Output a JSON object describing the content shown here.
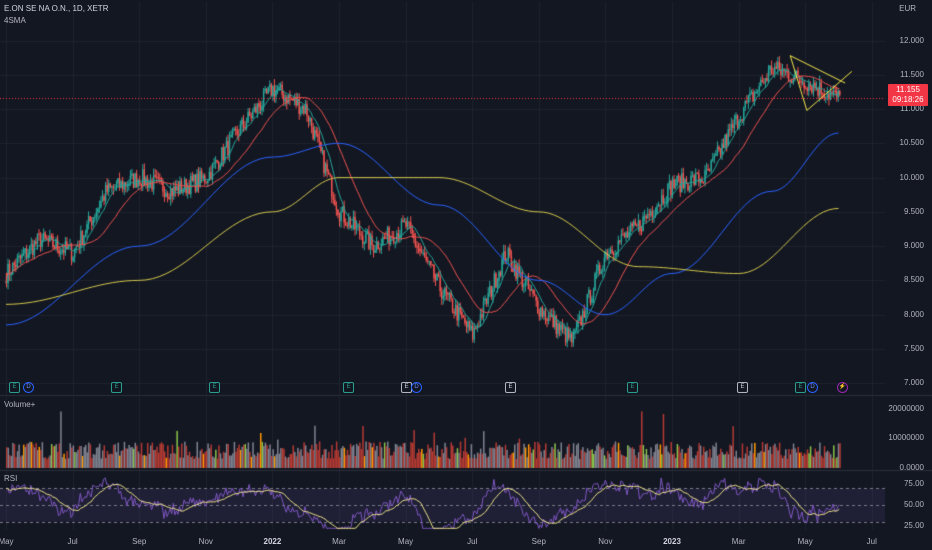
{
  "header": {
    "symbol": "E.ON SE NA O.N., 1D, XETR",
    "indicator": "4SMA"
  },
  "currency": "EUR",
  "current_price": {
    "value": "11.155",
    "countdown": "09:18:26"
  },
  "volume_pane": {
    "title": "Volume+",
    "ticks": [
      "20000000",
      "10000000",
      "0.0000"
    ]
  },
  "rsi_pane": {
    "title": "RSI",
    "ticks": [
      "75.00",
      "50.00",
      "25.00"
    ]
  },
  "price_ticks": [
    "12.000",
    "11.500",
    "11.000",
    "10.500",
    "10.000",
    "9.500",
    "9.000",
    "8.500",
    "8.000",
    "7.500",
    "7.000"
  ],
  "time_axis": [
    "May",
    "Jul",
    "Sep",
    "Nov",
    "2022",
    "Mar",
    "May",
    "Jul",
    "Sep",
    "Nov",
    "2023",
    "Mar",
    "May",
    "Jul"
  ],
  "events": [
    {
      "type": "E",
      "style": "e-green"
    },
    {
      "type": "D",
      "style": "d-blue"
    },
    {
      "type": "E",
      "style": "e-green"
    },
    {
      "type": "E",
      "style": "e-green"
    },
    {
      "type": "E",
      "style": "e-green"
    },
    {
      "type": "E",
      "style": "e-white"
    },
    {
      "type": "D",
      "style": "d-blue"
    },
    {
      "type": "E",
      "style": "e-white"
    },
    {
      "type": "E",
      "style": "e-green"
    },
    {
      "type": "E",
      "style": "e-white"
    },
    {
      "type": "E",
      "style": "e-green"
    },
    {
      "type": "D",
      "style": "d-blue"
    },
    {
      "type": "⚡",
      "style": "bolt"
    }
  ],
  "colors": {
    "up": "#26a69a",
    "down": "#ef5350",
    "sma_fast": "#26a69a",
    "sma_red": "#ef5350",
    "sma_blue": "#2962ff",
    "sma_yellow": "#d4c84a",
    "rsi_line": "#7e57c2",
    "rsi_ma": "#f0e68c",
    "triangle": "#f2e64a",
    "last_price": "#f23645"
  },
  "chart_data": {
    "type": "candlestick",
    "price_axis": {
      "unit": "EUR",
      "range": [
        6.9,
        12.3
      ]
    },
    "price_path_monthly": [
      {
        "t": "2021-05",
        "close": 8.6
      },
      {
        "t": "2021-06",
        "close": 9.1
      },
      {
        "t": "2021-07",
        "close": 8.9
      },
      {
        "t": "2021-08",
        "close": 9.8
      },
      {
        "t": "2021-09",
        "close": 10.0
      },
      {
        "t": "2021-10",
        "close": 9.8
      },
      {
        "t": "2021-11",
        "close": 10.0
      },
      {
        "t": "2021-12",
        "close": 10.7
      },
      {
        "t": "2022-01",
        "close": 11.3
      },
      {
        "t": "2022-02",
        "close": 11.0
      },
      {
        "t": "2022-03",
        "close": 9.5
      },
      {
        "t": "2022-04",
        "close": 9.0
      },
      {
        "t": "2022-05",
        "close": 9.3
      },
      {
        "t": "2022-06",
        "close": 8.4
      },
      {
        "t": "2022-07",
        "close": 7.7
      },
      {
        "t": "2022-08",
        "close": 8.9
      },
      {
        "t": "2022-09",
        "close": 8.1
      },
      {
        "t": "2022-10",
        "close": 7.6
      },
      {
        "t": "2022-11",
        "close": 8.9
      },
      {
        "t": "2022-12",
        "close": 9.3
      },
      {
        "t": "2023-01",
        "close": 9.9
      },
      {
        "t": "2023-02",
        "close": 10.0
      },
      {
        "t": "2023-03",
        "close": 10.9
      },
      {
        "t": "2023-04",
        "close": 11.6
      },
      {
        "t": "2023-05",
        "close": 11.4
      },
      {
        "t": "2023-06",
        "close": 11.155
      }
    ],
    "sma_200_path": [
      {
        "t": "2021-05",
        "v": 8.15
      },
      {
        "t": "2021-09",
        "v": 8.5
      },
      {
        "t": "2022-01",
        "v": 9.5
      },
      {
        "t": "2022-03",
        "v": 10.0
      },
      {
        "t": "2022-06",
        "v": 10.0
      },
      {
        "t": "2022-09",
        "v": 9.5
      },
      {
        "t": "2022-12",
        "v": 8.7
      },
      {
        "t": "2023-03",
        "v": 8.6
      },
      {
        "t": "2023-06",
        "v": 9.55
      }
    ],
    "sma_100_path": [
      {
        "t": "2021-05",
        "v": 7.85
      },
      {
        "t": "2021-09",
        "v": 9.0
      },
      {
        "t": "2022-01",
        "v": 10.3
      },
      {
        "t": "2022-03",
        "v": 10.5
      },
      {
        "t": "2022-06",
        "v": 9.6
      },
      {
        "t": "2022-09",
        "v": 8.5
      },
      {
        "t": "2022-11",
        "v": 8.0
      },
      {
        "t": "2023-01",
        "v": 8.6
      },
      {
        "t": "2023-04",
        "v": 9.8
      },
      {
        "t": "2023-06",
        "v": 10.65
      }
    ],
    "last_price": 11.155,
    "volume_axis_max": 20000000,
    "rsi_levels": [
      25,
      50,
      75
    ]
  }
}
